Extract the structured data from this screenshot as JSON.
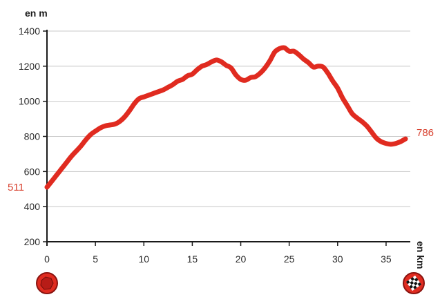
{
  "chart_data": {
    "type": "line",
    "ylabel": "en m",
    "xlabel": "en km",
    "xlim": [
      0,
      37.5
    ],
    "ylim": [
      200,
      1400
    ],
    "xticks": [
      0,
      5,
      10,
      15,
      20,
      25,
      30,
      35
    ],
    "yticks": [
      200,
      400,
      600,
      800,
      1000,
      1200,
      1400
    ],
    "grid": "horizontal",
    "start_label": "511",
    "end_label": "786",
    "colors": {
      "line": "#e02b20",
      "labels": "#d8412f",
      "grid": "#c8c8c8",
      "axis": "#1a1a1a"
    },
    "icons": {
      "start": "start-marker-icon",
      "finish": "checkered-flag-icon"
    },
    "series": [
      {
        "x": [
          0,
          0.5,
          1,
          1.5,
          2,
          2.5,
          3,
          3.5,
          4,
          4.5,
          5,
          5.5,
          6,
          6.5,
          7,
          7.5,
          8,
          8.5,
          9,
          9.5,
          10,
          10.5,
          11,
          11.5,
          12,
          12.5,
          13,
          13.5,
          14,
          14.5,
          15,
          15.5,
          16,
          16.5,
          17,
          17.5,
          18,
          18.5,
          19,
          19.5,
          20,
          20.5,
          21,
          21.5,
          22,
          22.5,
          23,
          23.5,
          24,
          24.5,
          25,
          25.5,
          26,
          26.5,
          27,
          27.5,
          28,
          28.5,
          29,
          29.5,
          30,
          30.5,
          31,
          31.5,
          32,
          32.5,
          33,
          33.5,
          34,
          34.5,
          35,
          35.5,
          36,
          36.5,
          37
        ],
        "y": [
          511,
          545,
          580,
          615,
          650,
          685,
          715,
          745,
          780,
          810,
          830,
          848,
          860,
          865,
          870,
          885,
          910,
          945,
          985,
          1015,
          1025,
          1035,
          1045,
          1055,
          1065,
          1080,
          1095,
          1115,
          1125,
          1145,
          1155,
          1180,
          1200,
          1210,
          1225,
          1235,
          1225,
          1205,
          1190,
          1150,
          1125,
          1120,
          1135,
          1140,
          1160,
          1190,
          1230,
          1280,
          1300,
          1305,
          1285,
          1285,
          1265,
          1240,
          1220,
          1195,
          1200,
          1195,
          1160,
          1115,
          1075,
          1020,
          975,
          930,
          905,
          885,
          860,
          825,
          790,
          770,
          760,
          755,
          760,
          770,
          786
        ]
      }
    ]
  }
}
